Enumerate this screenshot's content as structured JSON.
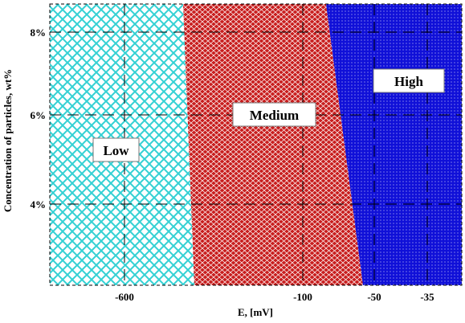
{
  "chart_data": {
    "type": "area",
    "title": "",
    "xlabel": "E, [mV]",
    "ylabel": "Concentration of particles, wt%",
    "x_ticks": [
      "-600",
      "-100",
      "-50",
      "-35"
    ],
    "y_ticks": [
      "4%",
      "6%",
      "8%"
    ],
    "y_tick_values": [
      4,
      6,
      8
    ],
    "ylim": [
      2.2,
      8.6
    ],
    "grid": true,
    "regions": [
      {
        "name": "Low",
        "label": "Low",
        "color": "#35d1d4",
        "background": "#ffffff"
      },
      {
        "name": "Medium",
        "label": "Medium",
        "color": "#c81e1e",
        "background": "#ffffff"
      },
      {
        "name": "High",
        "label": "High",
        "color": "#ffffff",
        "background": "#1010d8"
      }
    ]
  }
}
